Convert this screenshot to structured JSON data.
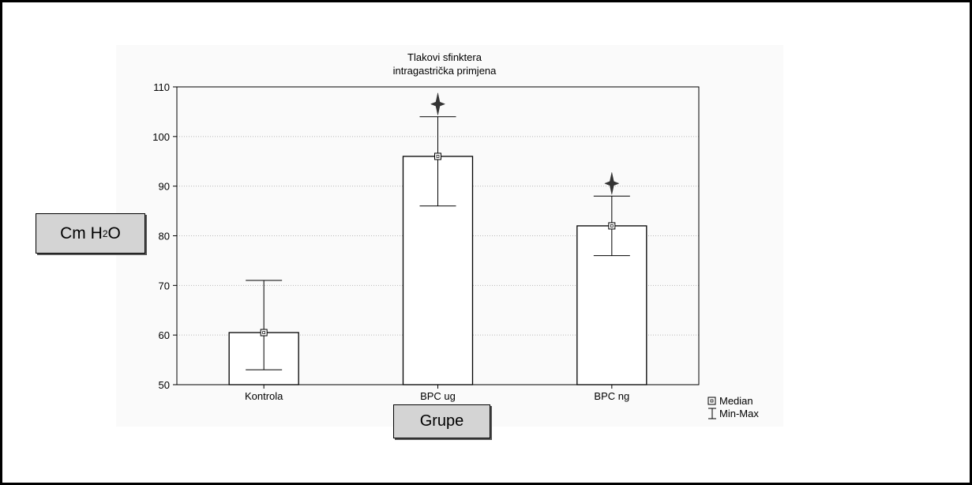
{
  "chart_data": {
    "type": "bar",
    "title": "Tlakovi sfinktera",
    "subtitle": "intragastrička primjena",
    "xlabel": "Grupe",
    "ylabel_main": "Cm H",
    "ylabel_sub": "2",
    "ylabel_tail": "O",
    "categories": [
      "Kontrola",
      "BPC ug",
      "BPC ng"
    ],
    "median": [
      60.5,
      96,
      82
    ],
    "min": [
      53,
      86,
      76
    ],
    "max": [
      71,
      104,
      88
    ],
    "significance_marker": [
      false,
      true,
      true
    ],
    "ylim": [
      50,
      110
    ],
    "yticks": [
      50,
      60,
      70,
      80,
      90,
      100,
      110
    ],
    "grid": true,
    "legend": [
      {
        "symbol": "square",
        "label": "Median"
      },
      {
        "symbol": "whisker",
        "label": "Min-Max"
      }
    ],
    "legend_position": "bottom-right"
  }
}
